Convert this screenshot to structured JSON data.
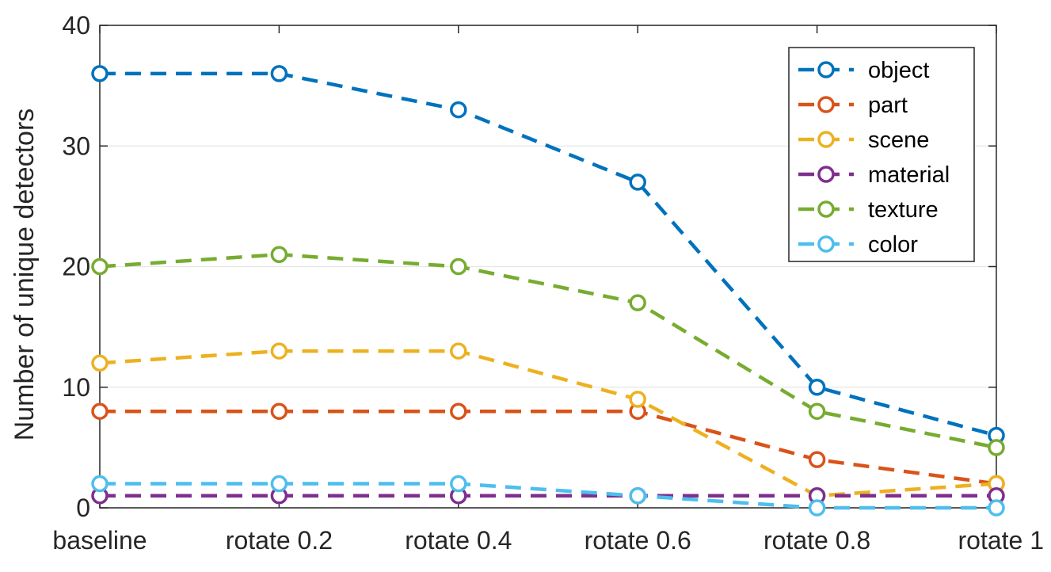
{
  "chart_data": {
    "type": "line",
    "title": "",
    "xlabel": "",
    "ylabel": "Number of unique detectors",
    "categories": [
      "baseline",
      "rotate 0.2",
      "rotate 0.4",
      "rotate 0.6",
      "rotate 0.8",
      "rotate 1"
    ],
    "ylim": [
      0,
      40
    ],
    "yticks": [
      0,
      10,
      20,
      30,
      40
    ],
    "grid": "horizontal",
    "legend_position": "top-right",
    "line_style": "dashed",
    "marker": "circle",
    "series": [
      {
        "name": "object",
        "color": "#0072BD",
        "values": [
          36,
          36,
          33,
          27,
          10,
          6
        ]
      },
      {
        "name": "part",
        "color": "#D95319",
        "values": [
          8,
          8,
          8,
          8,
          4,
          2
        ]
      },
      {
        "name": "scene",
        "color": "#EDB120",
        "values": [
          12,
          13,
          13,
          9,
          1,
          2
        ]
      },
      {
        "name": "material",
        "color": "#7E2F8E",
        "values": [
          1,
          1,
          1,
          1,
          1,
          1
        ]
      },
      {
        "name": "texture",
        "color": "#77AC30",
        "values": [
          20,
          21,
          20,
          17,
          8,
          5
        ]
      },
      {
        "name": "color",
        "color": "#4DBEEE",
        "values": [
          2,
          2,
          2,
          1,
          0,
          0
        ]
      }
    ]
  }
}
